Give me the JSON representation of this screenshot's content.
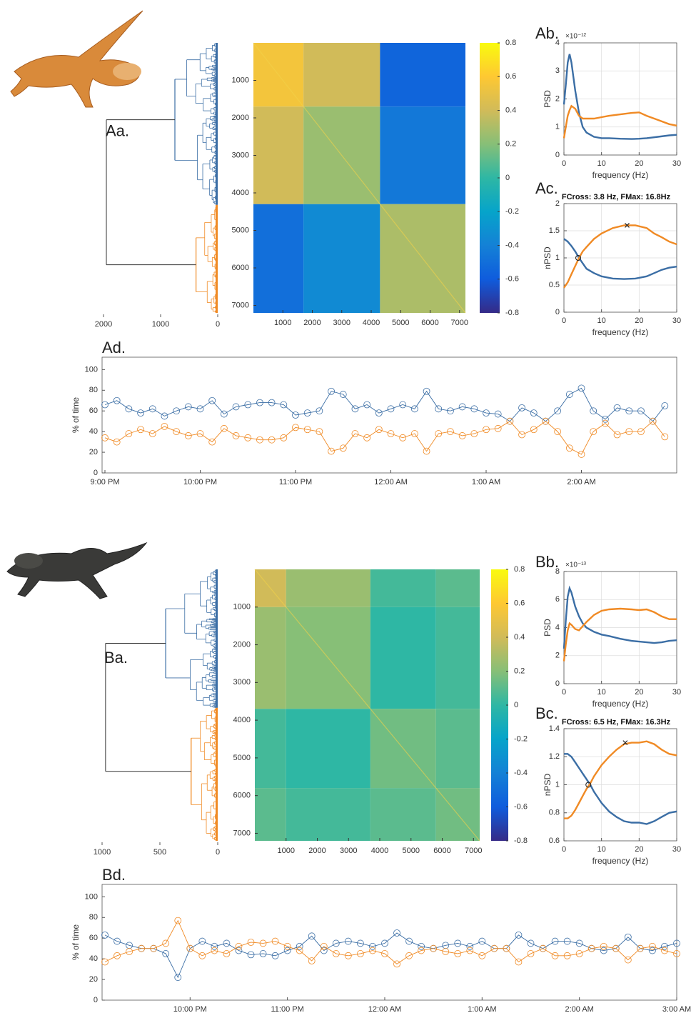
{
  "chart_data": [
    {
      "type": "dendrogram",
      "panel_label": "Aa.",
      "xlim": [
        0,
        2000
      ],
      "xticks": [
        0,
        1000,
        2000
      ],
      "x_reverse": true,
      "root_height": 1950,
      "root_color": "#333333",
      "clusters": [
        {
          "color": "#3b6ea5",
          "height": 750
        },
        {
          "color": "#f08a24",
          "height": 380
        }
      ]
    },
    {
      "type": "heatmap",
      "xlim": [
        0,
        7200
      ],
      "ylim": [
        7200,
        0
      ],
      "xticks": [
        1000,
        2000,
        3000,
        4000,
        5000,
        6000,
        7000
      ],
      "yticks": [
        1000,
        2000,
        3000,
        4000,
        5000,
        6000,
        7000
      ],
      "edges": [
        0,
        1700,
        4300,
        7200
      ],
      "values": [
        [
          0.55,
          0.4,
          -0.55
        ],
        [
          0.4,
          0.25,
          -0.45
        ],
        [
          -0.5,
          -0.35,
          0.3
        ]
      ],
      "clim": [
        -0.8,
        0.8
      ],
      "cticks": [
        -0.8,
        -0.6,
        -0.4,
        -0.2,
        0,
        0.2,
        0.4,
        0.6,
        0.8
      ]
    },
    {
      "type": "line",
      "panel_label": "Ab.",
      "exponent": "×10⁻¹²",
      "xlabel": "frequency (Hz)",
      "ylabel": "PSD",
      "grid": true,
      "xlim": [
        0,
        30
      ],
      "xticks": [
        0,
        10,
        20,
        30
      ],
      "ylim": [
        0,
        4
      ],
      "yticks": [
        0,
        1,
        2,
        3,
        4
      ],
      "x": [
        0,
        0.5,
        1,
        1.5,
        2,
        3,
        4,
        5,
        6,
        8,
        10,
        12,
        15,
        18,
        20,
        22,
        25,
        28,
        30
      ],
      "series": [
        {
          "color": "#3b6ea5",
          "values": [
            1.8,
            2.5,
            3.3,
            3.6,
            3.3,
            2.3,
            1.5,
            1.0,
            0.8,
            0.65,
            0.6,
            0.6,
            0.58,
            0.57,
            0.58,
            0.6,
            0.65,
            0.7,
            0.72
          ]
        },
        {
          "color": "#f08a24",
          "values": [
            0.6,
            1.0,
            1.4,
            1.6,
            1.75,
            1.65,
            1.4,
            1.3,
            1.3,
            1.3,
            1.35,
            1.4,
            1.45,
            1.5,
            1.52,
            1.4,
            1.25,
            1.1,
            1.05
          ]
        }
      ]
    },
    {
      "type": "line",
      "panel_label": "Ac.",
      "title": "FCross: 3.8 Hz, FMax: 16.8Hz",
      "xlabel": "frequency (Hz)",
      "ylabel": "nPSD",
      "grid": true,
      "xlim": [
        0,
        30
      ],
      "xticks": [
        0,
        10,
        20,
        30
      ],
      "ylim": [
        0,
        2
      ],
      "yticks": [
        0,
        0.5,
        1,
        1.5,
        2
      ],
      "x": [
        0,
        1,
        2,
        3,
        4,
        5,
        6,
        8,
        10,
        13,
        16,
        19,
        22,
        24,
        26,
        28,
        30
      ],
      "series": [
        {
          "color": "#3b6ea5",
          "values": [
            1.35,
            1.3,
            1.22,
            1.12,
            1.0,
            0.9,
            0.8,
            0.72,
            0.66,
            0.62,
            0.61,
            0.62,
            0.66,
            0.72,
            0.78,
            0.82,
            0.84
          ]
        },
        {
          "color": "#f08a24",
          "values": [
            0.45,
            0.55,
            0.7,
            0.85,
            1.0,
            1.12,
            1.2,
            1.35,
            1.45,
            1.55,
            1.6,
            1.6,
            1.55,
            1.45,
            1.38,
            1.3,
            1.25
          ]
        }
      ],
      "annotations": [
        {
          "x": 3.8,
          "y": 1.0,
          "symbol": "o"
        },
        {
          "x": 16.8,
          "y": 1.6,
          "symbol": "x"
        }
      ]
    },
    {
      "type": "line",
      "panel_label": "Ad.",
      "ylabel": "% of time",
      "marker": "o",
      "ylim": [
        0,
        112
      ],
      "yticks": [
        0,
        20,
        40,
        60,
        80,
        100
      ],
      "categories": [
        "9:00 PM",
        null,
        null,
        null,
        null,
        null,
        null,
        null,
        "10:00 PM",
        null,
        null,
        null,
        null,
        null,
        null,
        null,
        "11:00 PM",
        null,
        null,
        null,
        null,
        null,
        null,
        null,
        "12:00 AM",
        null,
        null,
        null,
        null,
        null,
        null,
        null,
        "1:00 AM",
        null,
        null,
        null,
        null,
        null,
        null,
        null,
        "2:00 AM",
        null,
        null,
        null,
        null,
        null,
        null,
        null
      ],
      "series": [
        {
          "color": "#3b6ea5",
          "values": [
            66,
            70,
            62,
            58,
            62,
            55,
            60,
            64,
            62,
            70,
            57,
            64,
            66,
            68,
            68,
            66,
            56,
            58,
            60,
            79,
            76,
            62,
            66,
            58,
            62,
            66,
            62,
            79,
            62,
            60,
            64,
            62,
            58,
            57,
            50,
            63,
            58,
            50,
            60,
            76,
            82,
            60,
            52,
            63,
            60,
            60,
            50,
            65
          ]
        },
        {
          "color": "#f08a24",
          "values": [
            34,
            30,
            38,
            42,
            38,
            45,
            40,
            36,
            38,
            30,
            43,
            36,
            34,
            32,
            32,
            34,
            44,
            42,
            40,
            21,
            24,
            38,
            34,
            42,
            38,
            34,
            38,
            21,
            38,
            40,
            36,
            38,
            42,
            43,
            50,
            37,
            42,
            50,
            40,
            24,
            18,
            40,
            48,
            37,
            40,
            40,
            50,
            35
          ]
        }
      ]
    },
    {
      "type": "dendrogram",
      "panel_label": "Ba.",
      "xlim": [
        0,
        1000
      ],
      "xticks": [
        0,
        500,
        1000
      ],
      "x_reverse": true,
      "root_height": 970,
      "root_color": "#333333",
      "clusters": [
        {
          "color": "#3b6ea5",
          "height": 450
        },
        {
          "color": "#f08a24",
          "height": 230
        }
      ]
    },
    {
      "type": "heatmap",
      "xlim": [
        0,
        7200
      ],
      "ylim": [
        7200,
        0
      ],
      "xticks": [
        1000,
        2000,
        3000,
        4000,
        5000,
        6000,
        7000
      ],
      "yticks": [
        1000,
        2000,
        3000,
        4000,
        5000,
        6000,
        7000
      ],
      "edges": [
        0,
        1000,
        3700,
        5800,
        7200
      ],
      "values": [
        [
          0.4,
          0.25,
          0.05,
          0.1
        ],
        [
          0.25,
          0.2,
          0.0,
          0.05
        ],
        [
          0.05,
          0.0,
          0.15,
          0.1
        ],
        [
          0.1,
          0.05,
          0.1,
          0.15
        ]
      ],
      "clim": [
        -0.8,
        0.8
      ],
      "cticks": [
        -0.8,
        -0.6,
        -0.4,
        -0.2,
        0,
        0.2,
        0.4,
        0.6,
        0.8
      ]
    },
    {
      "type": "line",
      "panel_label": "Bb.",
      "exponent": "×10⁻¹³",
      "xlabel": "frequency (Hz)",
      "ylabel": "PSD",
      "grid": true,
      "xlim": [
        0,
        30
      ],
      "xticks": [
        0,
        10,
        20,
        30
      ],
      "ylim": [
        0,
        8
      ],
      "yticks": [
        0,
        2,
        4,
        6,
        8
      ],
      "x": [
        0,
        0.5,
        1,
        1.5,
        2,
        3,
        4,
        5,
        6,
        8,
        10,
        12,
        15,
        18,
        20,
        22,
        24,
        26,
        28,
        30
      ],
      "series": [
        {
          "color": "#3b6ea5",
          "values": [
            2.5,
            4.5,
            6.2,
            6.8,
            6.5,
            5.5,
            4.8,
            4.3,
            4.0,
            3.7,
            3.5,
            3.4,
            3.2,
            3.05,
            3.0,
            2.95,
            2.9,
            2.95,
            3.05,
            3.1
          ]
        },
        {
          "color": "#f08a24",
          "values": [
            1.6,
            2.8,
            3.8,
            4.3,
            4.2,
            3.9,
            3.8,
            4.1,
            4.4,
            4.9,
            5.2,
            5.3,
            5.35,
            5.3,
            5.25,
            5.3,
            5.1,
            4.8,
            4.6,
            4.6
          ]
        }
      ]
    },
    {
      "type": "line",
      "panel_label": "Bc.",
      "title": "FCross: 6.5 Hz, FMax: 16.3Hz",
      "xlabel": "frequency (Hz)",
      "ylabel": "nPSD",
      "grid": true,
      "xlim": [
        0,
        30
      ],
      "xticks": [
        0,
        10,
        20,
        30
      ],
      "ylim": [
        0.6,
        1.4
      ],
      "yticks": [
        0.6,
        0.8,
        1,
        1.2,
        1.4
      ],
      "x": [
        0,
        1,
        2,
        3,
        4,
        5,
        6,
        7,
        8,
        10,
        12,
        14,
        16,
        18,
        20,
        22,
        24,
        26,
        28,
        30
      ],
      "series": [
        {
          "color": "#3b6ea5",
          "values": [
            1.22,
            1.22,
            1.2,
            1.16,
            1.12,
            1.08,
            1.04,
            1.0,
            0.95,
            0.87,
            0.81,
            0.77,
            0.74,
            0.73,
            0.73,
            0.72,
            0.74,
            0.77,
            0.8,
            0.81
          ]
        },
        {
          "color": "#f08a24",
          "values": [
            0.76,
            0.76,
            0.78,
            0.82,
            0.87,
            0.92,
            0.97,
            1.01,
            1.06,
            1.14,
            1.2,
            1.25,
            1.29,
            1.3,
            1.3,
            1.31,
            1.29,
            1.25,
            1.22,
            1.21
          ]
        }
      ],
      "annotations": [
        {
          "x": 6.5,
          "y": 1.0,
          "symbol": "o"
        },
        {
          "x": 16.3,
          "y": 1.3,
          "symbol": "x"
        }
      ]
    },
    {
      "type": "line",
      "panel_label": "Bd.",
      "ylabel": "% of time",
      "marker": "o",
      "ylim": [
        0,
        112
      ],
      "yticks": [
        0,
        20,
        40,
        60,
        80,
        100
      ],
      "categories": [
        null,
        null,
        null,
        null,
        null,
        null,
        null,
        "10:00 PM",
        null,
        null,
        null,
        null,
        null,
        null,
        null,
        "11:00 PM",
        null,
        null,
        null,
        null,
        null,
        null,
        null,
        "12:00 AM",
        null,
        null,
        null,
        null,
        null,
        null,
        null,
        "1:00 AM",
        null,
        null,
        null,
        null,
        null,
        null,
        null,
        "2:00 AM",
        null,
        null,
        null,
        null,
        null,
        null,
        null,
        "3:00 AM"
      ],
      "series": [
        {
          "color": "#3b6ea5",
          "values": [
            63,
            57,
            53,
            50,
            50,
            45,
            22,
            50,
            57,
            52,
            55,
            48,
            44,
            45,
            43,
            48,
            52,
            62,
            48,
            55,
            57,
            55,
            52,
            55,
            65,
            57,
            52,
            50,
            53,
            55,
            52,
            57,
            50,
            50,
            63,
            55,
            50,
            57,
            57,
            55,
            50,
            48,
            50,
            61,
            50,
            48,
            52,
            55
          ]
        },
        {
          "color": "#f08a24",
          "values": [
            37,
            43,
            47,
            50,
            50,
            55,
            77,
            50,
            43,
            48,
            45,
            52,
            56,
            55,
            57,
            52,
            48,
            38,
            52,
            45,
            43,
            45,
            48,
            45,
            35,
            43,
            48,
            50,
            47,
            45,
            48,
            43,
            50,
            50,
            37,
            45,
            50,
            43,
            43,
            45,
            50,
            52,
            50,
            39,
            50,
            52,
            48,
            45
          ]
        }
      ]
    }
  ]
}
